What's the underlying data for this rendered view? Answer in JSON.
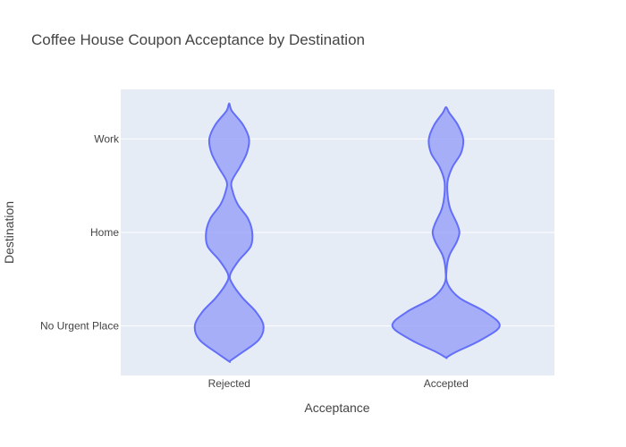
{
  "chart_data": {
    "type": "violin",
    "title": "Coffee House Coupon Acceptance by Destination",
    "xlabel": "Acceptance",
    "ylabel": "Destination",
    "categories": [
      "Rejected",
      "Accepted"
    ],
    "y_categories": [
      "No Urgent Place",
      "Home",
      "Work"
    ],
    "grid": true,
    "legend": "none",
    "colors": {
      "fill": "#8d95f8",
      "line": "#636efa",
      "plot_bg": "#e5ecf6",
      "grid": "#ffffff",
      "text": "#444444"
    },
    "series": [
      {
        "category": "Rejected",
        "range": [
          -0.38,
          2.38
        ],
        "density": [
          [
            -0.38,
            0.0
          ],
          [
            -0.3,
            0.2
          ],
          [
            -0.15,
            0.55
          ],
          [
            0.0,
            0.64
          ],
          [
            0.15,
            0.5
          ],
          [
            0.3,
            0.25
          ],
          [
            0.45,
            0.06
          ],
          [
            0.55,
            0.02
          ],
          [
            0.7,
            0.18
          ],
          [
            0.85,
            0.4
          ],
          [
            1.0,
            0.43
          ],
          [
            1.15,
            0.35
          ],
          [
            1.3,
            0.16
          ],
          [
            1.45,
            0.06
          ],
          [
            1.55,
            0.05
          ],
          [
            1.7,
            0.2
          ],
          [
            1.85,
            0.33
          ],
          [
            2.0,
            0.37
          ],
          [
            2.15,
            0.26
          ],
          [
            2.3,
            0.05
          ],
          [
            2.38,
            0.0
          ]
        ]
      },
      {
        "category": "Accepted",
        "range": [
          -0.34,
          2.34
        ],
        "density": [
          [
            -0.34,
            0.0
          ],
          [
            -0.28,
            0.18
          ],
          [
            -0.15,
            0.65
          ],
          [
            0.0,
            1.0
          ],
          [
            0.15,
            0.73
          ],
          [
            0.3,
            0.25
          ],
          [
            0.45,
            0.03
          ],
          [
            0.6,
            0.01
          ],
          [
            0.75,
            0.06
          ],
          [
            0.9,
            0.2
          ],
          [
            1.0,
            0.25
          ],
          [
            1.1,
            0.2
          ],
          [
            1.25,
            0.08
          ],
          [
            1.4,
            0.03
          ],
          [
            1.55,
            0.03
          ],
          [
            1.7,
            0.12
          ],
          [
            1.85,
            0.28
          ],
          [
            2.0,
            0.32
          ],
          [
            2.15,
            0.22
          ],
          [
            2.28,
            0.06
          ],
          [
            2.34,
            0.0
          ]
        ]
      }
    ]
  }
}
